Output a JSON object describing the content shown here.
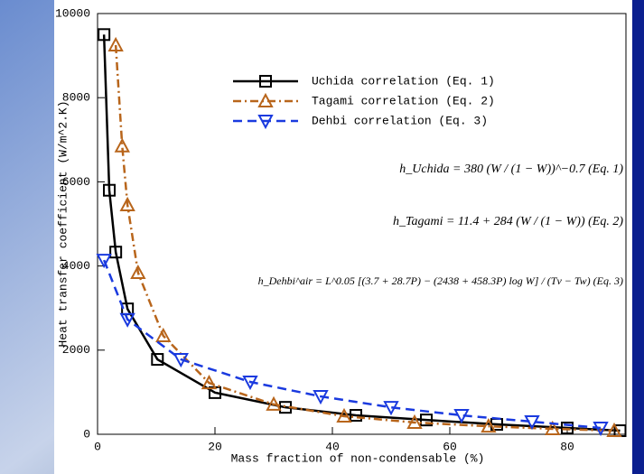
{
  "chart_data": {
    "type": "line",
    "xlabel": "Mass fraction of non-condensable (%)",
    "ylabel": "Heat transfer coefficient (W/m^2.K)",
    "xlim": [
      0,
      90
    ],
    "ylim": [
      0,
      10000
    ],
    "xticks": [
      0,
      20,
      40,
      60,
      80
    ],
    "yticks": [
      0,
      2000,
      4000,
      6000,
      8000,
      10000
    ],
    "legend": "upper right",
    "series": [
      {
        "name": "Uchida correlation (Eq. 1)",
        "color": "#000000",
        "dash": "solid",
        "marker": "square",
        "x": [
          1.1,
          2,
          3.1,
          5.1,
          10.2,
          20,
          32,
          44,
          56,
          68,
          80,
          89
        ],
        "values": [
          9500,
          5800,
          4330,
          2980,
          1780,
          990,
          640,
          450,
          340,
          235,
          150,
          85
        ]
      },
      {
        "name": "Tagami correlation (Eq. 2)",
        "color": "#b8651b",
        "dash": "dashdot",
        "marker": "triangle-up",
        "x": [
          3.1,
          4.2,
          5.1,
          6.9,
          11.2,
          19,
          30,
          42,
          54,
          66.6,
          77.5,
          88
        ],
        "values": [
          9250,
          6850,
          5450,
          3840,
          2340,
          1220,
          710,
          430,
          280,
          190,
          130,
          85
        ]
      },
      {
        "name": "Dehbi correlation  (Eq. 3)",
        "color": "#1a3adf",
        "dash": "dashed",
        "marker": "triangle-down",
        "x": [
          1.1,
          5.1,
          14.2,
          26,
          38,
          50,
          62,
          74,
          85.7
        ],
        "values": [
          4140,
          2730,
          1780,
          1245,
          900,
          640,
          450,
          300,
          150
        ]
      }
    ],
    "annotations": [
      "h_Uchida = 380 (W / (1 − W))^−0.7  (Eq. 1)",
      "h_Tagami = 11.4 + 284 (W / (1 − W))  (Eq. 2)",
      "h_Dehbi^air = L^0.05 [(3.7 + 28.7P) − (2438 + 458.3P) log W] / (Tv − Tw)  (Eq. 3)"
    ]
  }
}
